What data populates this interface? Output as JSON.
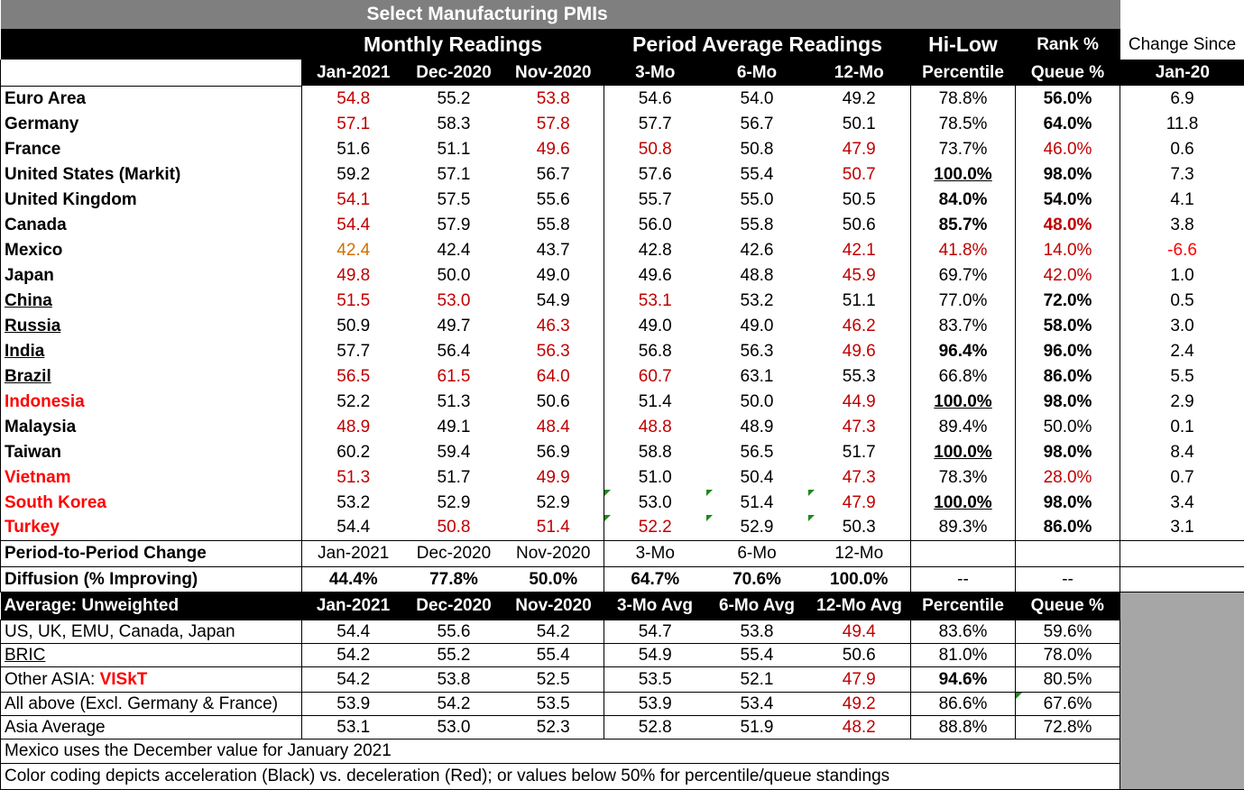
{
  "title": "Select Manufacturing PMIs",
  "group_headers": {
    "monthly": "Monthly Readings",
    "period": "Period Average Readings",
    "hilow": "Hi-Low",
    "rank": "Rank %",
    "change": "Change Since"
  },
  "col_headers": {
    "jan": "Jan-2021",
    "dec": "Dec-2020",
    "nov": "Nov-2020",
    "m3": "3-Mo",
    "m6": "6-Mo",
    "m12": "12-Mo",
    "pct": "Percentile",
    "queue": "Queue %",
    "since": "Jan-20"
  },
  "rows": [
    {
      "label": "Euro Area",
      "jan": "54.8",
      "dec": "55.2",
      "nov": "53.8",
      "m3": "54.6",
      "m6": "54.0",
      "m12": "49.2",
      "pct": "78.8%",
      "queue": "56.0%",
      "chg": "6.9"
    },
    {
      "label": " Germany",
      "jan": "57.1",
      "dec": "58.3",
      "nov": "57.8",
      "m3": "57.7",
      "m6": "56.7",
      "m12": "50.1",
      "pct": "78.5%",
      "queue": "64.0%",
      "chg": "11.8"
    },
    {
      "label": " France",
      "jan": "51.6",
      "dec": "51.1",
      "nov": "49.6",
      "m3": "50.8",
      "m6": "50.8",
      "m12": "47.9",
      "pct": "73.7%",
      "queue": "46.0%",
      "chg": "0.6"
    },
    {
      "label": "United States (Markit)",
      "jan": "59.2",
      "dec": "57.1",
      "nov": "56.7",
      "m3": "57.6",
      "m6": "55.4",
      "m12": "50.7",
      "pct": "100.0%",
      "queue": "98.0%",
      "chg": "7.3"
    },
    {
      "label": "United Kingdom",
      "jan": "54.1",
      "dec": "57.5",
      "nov": "55.6",
      "m3": "55.7",
      "m6": "55.0",
      "m12": "50.5",
      "pct": "84.0%",
      "queue": "54.0%",
      "chg": "4.1"
    },
    {
      "label": "Canada",
      "jan": "54.4",
      "dec": "57.9",
      "nov": "55.8",
      "m3": "56.0",
      "m6": "55.8",
      "m12": "50.6",
      "pct": "85.7%",
      "queue": "48.0%",
      "chg": "3.8"
    },
    {
      "label": "Mexico",
      "jan": "42.4",
      "dec": "42.4",
      "nov": "43.7",
      "m3": "42.8",
      "m6": "42.6",
      "m12": "42.1",
      "pct": "41.8%",
      "queue": "14.0%",
      "chg": "-6.6"
    },
    {
      "label": "Japan",
      "jan": "49.8",
      "dec": "50.0",
      "nov": "49.0",
      "m3": "49.6",
      "m6": "48.8",
      "m12": "45.9",
      "pct": "69.7%",
      "queue": "42.0%",
      "chg": "1.0"
    },
    {
      "label": "China",
      "jan": "51.5",
      "dec": "53.0",
      "nov": "54.9",
      "m3": "53.1",
      "m6": "53.2",
      "m12": "51.1",
      "pct": "77.0%",
      "queue": "72.0%",
      "chg": "0.5"
    },
    {
      "label": "Russia",
      "jan": "50.9",
      "dec": "49.7",
      "nov": "46.3",
      "m3": "49.0",
      "m6": "49.0",
      "m12": "46.2",
      "pct": "83.7%",
      "queue": "58.0%",
      "chg": "3.0"
    },
    {
      "label": "India",
      "jan": "57.7",
      "dec": "56.4",
      "nov": "56.3",
      "m3": "56.8",
      "m6": "56.3",
      "m12": "49.6",
      "pct": "96.4%",
      "queue": "96.0%",
      "chg": "2.4"
    },
    {
      "label": "Brazil",
      "jan": "56.5",
      "dec": "61.5",
      "nov": "64.0",
      "m3": "60.7",
      "m6": "63.1",
      "m12": "55.3",
      "pct": "66.8%",
      "queue": "86.0%",
      "chg": "5.5"
    },
    {
      "label": "Indonesia",
      "jan": "52.2",
      "dec": "51.3",
      "nov": "50.6",
      "m3": "51.4",
      "m6": "50.0",
      "m12": "44.9",
      "pct": "100.0%",
      "queue": "98.0%",
      "chg": "2.9"
    },
    {
      "label": "Malaysia",
      "jan": "48.9",
      "dec": "49.1",
      "nov": "48.4",
      "m3": "48.8",
      "m6": "48.9",
      "m12": "47.3",
      "pct": "89.4%",
      "queue": "50.0%",
      "chg": "0.1"
    },
    {
      "label": "Taiwan",
      "jan": "60.2",
      "dec": "59.4",
      "nov": "56.9",
      "m3": "58.8",
      "m6": "56.5",
      "m12": "51.7",
      "pct": "100.0%",
      "queue": "98.0%",
      "chg": "8.4"
    },
    {
      "label": "Vietnam",
      "jan": "51.3",
      "dec": "51.7",
      "nov": "49.9",
      "m3": "51.0",
      "m6": "50.4",
      "m12": "47.3",
      "pct": "78.3%",
      "queue": "28.0%",
      "chg": "0.7"
    },
    {
      "label": "South Korea",
      "jan": "53.2",
      "dec": "52.9",
      "nov": "52.9",
      "m3": "53.0",
      "m6": "51.4",
      "m12": "47.9",
      "pct": "100.0%",
      "queue": "98.0%",
      "chg": "3.4"
    },
    {
      "label": "Turkey",
      "jan": "54.4",
      "dec": "50.8",
      "nov": "51.4",
      "m3": "52.2",
      "m6": "52.9",
      "m12": "50.3",
      "pct": "89.3%",
      "queue": "86.0%",
      "chg": "3.1"
    }
  ],
  "period_change": {
    "label": "Period-to-Period Change",
    "jan": "Jan-2021",
    "dec": "Dec-2020",
    "nov": "Nov-2020",
    "m3": "3-Mo",
    "m6": "6-Mo",
    "m12": "12-Mo"
  },
  "diffusion": {
    "label": "Diffusion (% Improving)",
    "jan": "44.4%",
    "dec": "77.8%",
    "nov": "50.0%",
    "m3": "64.7%",
    "m6": "70.6%",
    "m12": "100.0%",
    "pct": "--",
    "queue": "--"
  },
  "avg_header": {
    "label": "Average: Unweighted",
    "jan": "Jan-2021",
    "dec": "Dec-2020",
    "nov": "Nov-2020",
    "m3": "3-Mo Avg",
    "m6": "6-Mo Avg",
    "m12": "12-Mo Avg",
    "pct": "Percentile",
    "queue": "Queue %"
  },
  "avg_rows": [
    {
      "label": "US, UK, EMU, Canada, Japan",
      "jan": "54.4",
      "dec": "55.6",
      "nov": "54.2",
      "m3": "54.7",
      "m6": "53.8",
      "m12": "49.4",
      "pct": "83.6%",
      "queue": "59.6%"
    },
    {
      "label": "BRIC",
      "jan": "54.2",
      "dec": "55.2",
      "nov": "55.4",
      "m3": "54.9",
      "m6": "55.4",
      "m12": "50.6",
      "pct": "81.0%",
      "queue": "78.0%"
    },
    {
      "label": "Other ASIA: ",
      "label_em": "VISkT",
      "jan": "54.2",
      "dec": "53.8",
      "nov": "52.5",
      "m3": "53.5",
      "m6": "52.1",
      "m12": "47.9",
      "pct": "94.6%",
      "queue": "80.5%"
    },
    {
      "label": " All above (Excl. Germany & France)",
      "jan": "53.9",
      "dec": "54.2",
      "nov": "53.5",
      "m3": "53.9",
      "m6": "53.4",
      "m12": "49.2",
      "pct": "86.6%",
      "queue": "67.6%"
    },
    {
      "label": "Asia Average",
      "jan": "53.1",
      "dec": "53.0",
      "nov": "52.3",
      "m3": "52.8",
      "m6": "51.9",
      "m12": "48.2",
      "pct": "88.8%",
      "queue": "72.8%"
    }
  ],
  "notes": [
    "Mexico uses the December value for January 2021",
    "Color coding depicts acceleration (Black) vs. deceleration (Red); or values below 50% for percentile/queue standings"
  ],
  "colors": {
    "deceleration": "#c00000",
    "title_bg": "#7f7f7f",
    "header_bg": "#000000",
    "filler_bg": "#a6a6a6",
    "highlight_label": "#ff0000",
    "mexico_value": "#d07000"
  }
}
